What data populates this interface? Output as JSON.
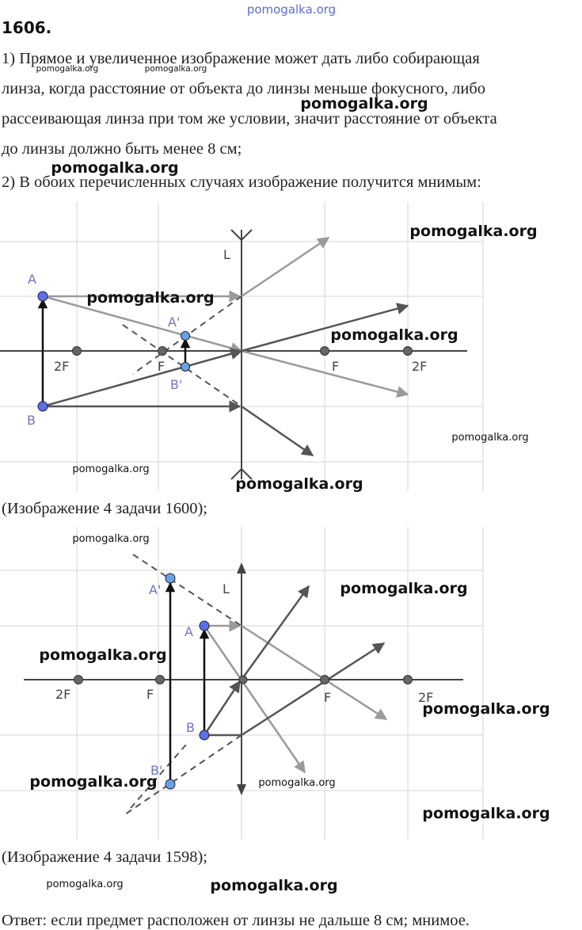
{
  "watermarks": [
    "pomogalka.org",
    "pomogalka.org",
    "pomogalka.org",
    "pomogalka.org",
    "pomogalka.org",
    "pomogalka.org",
    "pomogalka.org",
    "pomogalka.org",
    "pomogalka.org",
    "pomogalka.org",
    "pomogalka.org",
    "pomogalka.org",
    "pomogalka.org",
    "pomogalka.org",
    "pomogalka.org",
    "pomogalka.org",
    "pomogalka.org",
    "pomogalka.org",
    "pomogalka.org",
    "pomogalka.org"
  ],
  "heading": "1606.",
  "paragraph_lines": [
    "1) Прямое и увеличенное изображение может дать либо собирающая",
    "линза, когда расстояние от объекта до линзы меньше фокусного, либо",
    "рассеивающая линза при том же условии, значит расстояние от объекта",
    "до линзы должно быть менее 8 см;",
    "2) В обоих перечисленных случаях изображение получится мнимым:"
  ],
  "figure1": {
    "labels": [
      "A",
      "B",
      "L",
      "2F",
      "F",
      "F",
      "2F",
      "A'",
      "B'"
    ]
  },
  "caption1": "(Изображение 4 задачи 1600);",
  "figure2": {
    "labels": [
      "A'",
      "L",
      "A",
      "2F",
      "F",
      "B",
      "F",
      "2F",
      "B'"
    ]
  },
  "caption2": "(Изображение 4 задачи 1598);",
  "answer": "Ответ:  если предмет расположен от линзы не дальше 8 см;  мнимое."
}
